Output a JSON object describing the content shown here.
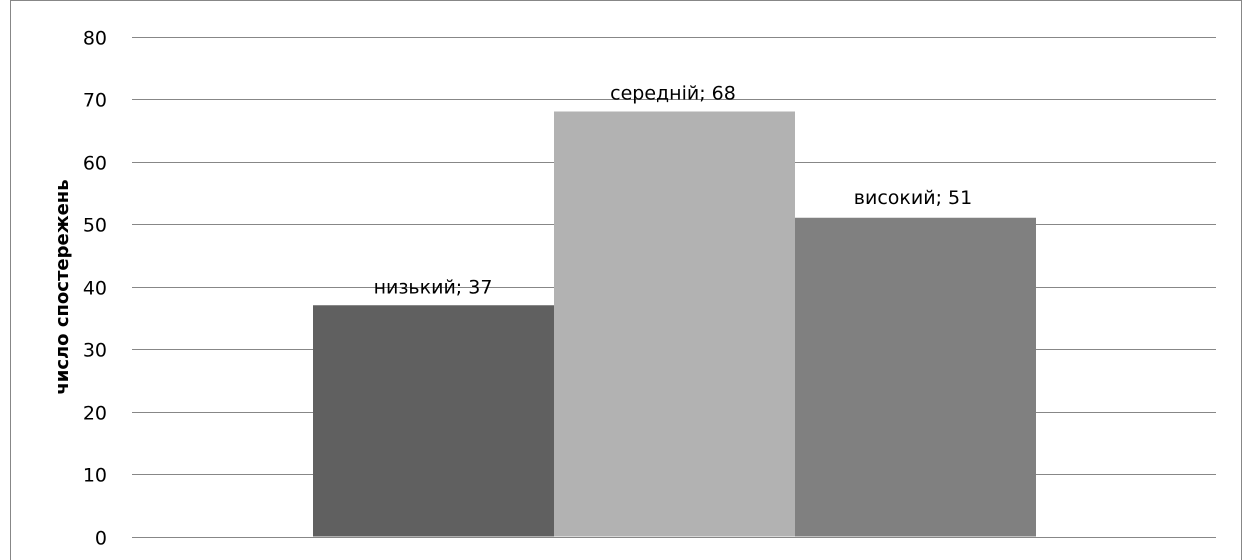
{
  "chart_data": {
    "type": "bar",
    "categories": [
      "низький",
      "середній",
      "високий"
    ],
    "values": [
      37,
      68,
      51
    ],
    "data_labels": [
      "низький; 37",
      "середній; 68",
      "високий; 51"
    ],
    "ylabel": "число спостережень",
    "xlabel": "",
    "ylim": [
      0,
      80
    ],
    "yticks": [
      "0",
      "10",
      "20",
      "30",
      "40",
      "50",
      "60",
      "70",
      "80"
    ],
    "grid": true,
    "legend": "none",
    "colors": [
      "#606060",
      "#b2b2b2",
      "#808080"
    ],
    "grid_color": "#878787",
    "border_color": "#878787"
  }
}
